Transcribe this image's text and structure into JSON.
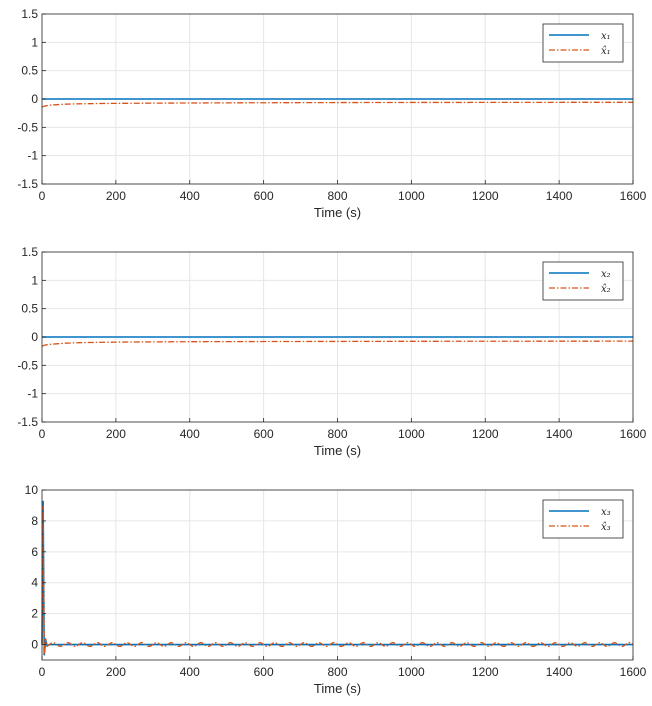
{
  "chart_data": [
    {
      "type": "line",
      "xlabel": "Time (s)",
      "ylabel": "",
      "xlim": [
        0,
        1600
      ],
      "ylim": [
        -1.5,
        1.5
      ],
      "xticks": [
        "0",
        "200",
        "400",
        "600",
        "800",
        "1000",
        "1200",
        "1400",
        "1600"
      ],
      "yticks": [
        "1.5",
        "1",
        "0.5",
        "0",
        "-0.5",
        "-1",
        "-1.5"
      ],
      "grid": true,
      "legend_position": "top-right",
      "series": [
        {
          "name": "x₁",
          "color": "#0072BD",
          "style": "solid",
          "x": [
            0,
            1600
          ],
          "y": [
            0.0,
            0.0
          ]
        },
        {
          "name": "x̂₁",
          "color": "#D95319",
          "style": "dashdot",
          "x": [
            0,
            5,
            10,
            20,
            40,
            60,
            100,
            150,
            200,
            300,
            400,
            600,
            800,
            1000,
            1200,
            1400,
            1600
          ],
          "y": [
            -0.14,
            -0.13,
            -0.12,
            -0.11,
            -0.1,
            -0.092,
            -0.085,
            -0.08,
            -0.077,
            -0.073,
            -0.07,
            -0.066,
            -0.063,
            -0.061,
            -0.06,
            -0.059,
            -0.058
          ]
        }
      ]
    },
    {
      "type": "line",
      "xlabel": "Time (s)",
      "ylabel": "",
      "xlim": [
        0,
        1600
      ],
      "ylim": [
        -1.5,
        1.5
      ],
      "xticks": [
        "0",
        "200",
        "400",
        "600",
        "800",
        "1000",
        "1200",
        "1400",
        "1600"
      ],
      "yticks": [
        "1.5",
        "1",
        "0.5",
        "0",
        "-0.5",
        "-1",
        "-1.5"
      ],
      "grid": true,
      "legend_position": "top-right",
      "series": [
        {
          "name": "x₂",
          "color": "#0072BD",
          "style": "solid",
          "x": [
            0,
            1600
          ],
          "y": [
            0.0,
            0.0
          ]
        },
        {
          "name": "x̂₂",
          "color": "#D95319",
          "style": "dashdot",
          "x": [
            0,
            5,
            10,
            20,
            40,
            60,
            100,
            150,
            200,
            300,
            400,
            600,
            800,
            1000,
            1200,
            1400,
            1600
          ],
          "y": [
            -0.16,
            -0.15,
            -0.14,
            -0.13,
            -0.12,
            -0.11,
            -0.1,
            -0.095,
            -0.09,
            -0.086,
            -0.083,
            -0.08,
            -0.078,
            -0.076,
            -0.075,
            -0.074,
            -0.073
          ]
        }
      ]
    },
    {
      "type": "line",
      "xlabel": "Time (s)",
      "ylabel": "",
      "xlim": [
        0,
        1600
      ],
      "ylim": [
        -1,
        10
      ],
      "xticks": [
        "0",
        "200",
        "400",
        "600",
        "800",
        "1000",
        "1200",
        "1400",
        "1600"
      ],
      "yticks": [
        "10",
        "8",
        "6",
        "4",
        "2",
        "0"
      ],
      "grid": true,
      "legend_position": "top-right",
      "series": [
        {
          "name": "x₃",
          "color": "#0072BD",
          "style": "solid",
          "x": [
            0,
            3,
            6,
            10,
            14,
            20,
            1600
          ],
          "y": [
            0.0,
            9.3,
            -0.7,
            0.3,
            -0.1,
            0.0,
            0.0
          ]
        },
        {
          "name": "x̂₃",
          "color": "#D95319",
          "style": "dashdot",
          "x": [
            0,
            3,
            6,
            10,
            14,
            20,
            1600
          ],
          "y": [
            0.0,
            9.0,
            -0.6,
            0.4,
            -0.1,
            0.0,
            0.0
          ],
          "oscillation_amplitude": 0.12,
          "oscillation_period": 40
        }
      ]
    }
  ]
}
